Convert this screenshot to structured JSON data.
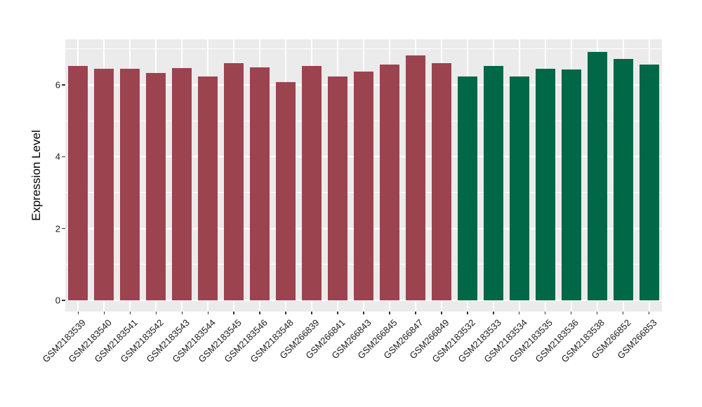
{
  "figure": {
    "background": "#FFFFFF",
    "panel_background": "#EBEBEB",
    "grid_color": "#FFFFFF",
    "tick_color": "#333333",
    "axis_text_color": "#1a1a1a"
  },
  "chart_data": {
    "type": "bar",
    "title": "",
    "xlabel": "",
    "ylabel": "Expression Level",
    "ylim": [
      0,
      7.26
    ],
    "yticks": [
      0,
      2,
      4,
      6
    ],
    "yticks_minor": [
      1,
      3,
      5,
      7
    ],
    "grid": true,
    "legend_position": "none",
    "group_colors": {
      "group_1": "#9B4450",
      "group_2": "#006747"
    },
    "categories": [
      "GSM2183539",
      "GSM2183540",
      "GSM2183541",
      "GSM2183542",
      "GSM2183543",
      "GSM2183544",
      "GSM2183545",
      "GSM2183546",
      "GSM2183548",
      "GSM266839",
      "GSM266841",
      "GSM266843",
      "GSM266845",
      "GSM266847",
      "GSM266849",
      "GSM2183532",
      "GSM2183533",
      "GSM2183534",
      "GSM2183535",
      "GSM2183536",
      "GSM2183538",
      "GSM266852",
      "GSM266853"
    ],
    "values": [
      6.52,
      6.44,
      6.44,
      6.33,
      6.47,
      6.24,
      6.6,
      6.48,
      6.07,
      6.53,
      6.24,
      6.38,
      6.56,
      6.83,
      6.61,
      6.23,
      6.52,
      6.24,
      6.45,
      6.43,
      6.91,
      6.72,
      6.57
    ],
    "colors": [
      "#9B4450",
      "#9B4450",
      "#9B4450",
      "#9B4450",
      "#9B4450",
      "#9B4450",
      "#9B4450",
      "#9B4450",
      "#9B4450",
      "#9B4450",
      "#9B4450",
      "#9B4450",
      "#9B4450",
      "#9B4450",
      "#9B4450",
      "#006747",
      "#006747",
      "#006747",
      "#006747",
      "#006747",
      "#006747",
      "#006747",
      "#006747"
    ]
  }
}
